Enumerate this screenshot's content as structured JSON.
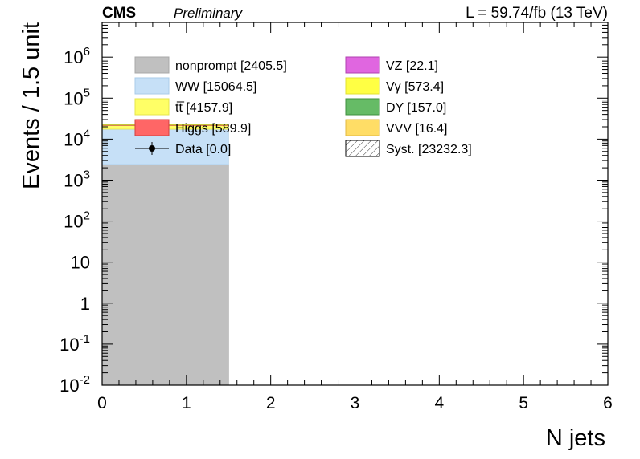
{
  "header": {
    "experiment": "CMS",
    "status": "Preliminary",
    "lumi": "L = 59.74/fb (13 TeV)"
  },
  "chart_data": {
    "type": "bar",
    "stacked": true,
    "xlabel": "N jets",
    "ylabel": "Events / 1.5 unit",
    "xlim": [
      0,
      6
    ],
    "ylim": [
      0.01,
      7000000
    ],
    "log_y": true,
    "x_ticks": [
      "0",
      "1",
      "2",
      "3",
      "4",
      "5",
      "6"
    ],
    "y_ticks": [
      {
        "base": "10",
        "exp": "-2",
        "value": 0.01
      },
      {
        "base": "10",
        "exp": "-1",
        "value": 0.1
      },
      {
        "base": "1",
        "exp": "",
        "value": 1
      },
      {
        "base": "10",
        "exp": "",
        "value": 10
      },
      {
        "base": "10",
        "exp": "2",
        "value": 100
      },
      {
        "base": "10",
        "exp": "3",
        "value": 1000
      },
      {
        "base": "10",
        "exp": "4",
        "value": 10000
      },
      {
        "base": "10",
        "exp": "5",
        "value": 100000
      },
      {
        "base": "10",
        "exp": "6",
        "value": 1000000
      }
    ],
    "bin_edges": [
      0,
      1.5,
      3,
      4.5,
      6
    ],
    "series": [
      {
        "name": "nonprompt",
        "total": "2405.5",
        "color": "#c0c0c0",
        "stroke": "#a8a8a8",
        "values": [
          2405.5,
          0,
          0,
          0
        ]
      },
      {
        "name": "WW",
        "total": "15064.5",
        "color": "#c6e0f7",
        "stroke": "#a9cbe8",
        "values": [
          15064.5,
          0,
          0,
          0
        ]
      },
      {
        "name": "tt̅",
        "total": "4157.9",
        "color": "#ffff66",
        "stroke": "#e6e64c",
        "values": [
          4157.9,
          0,
          0,
          0
        ]
      },
      {
        "name": "Higgs",
        "total": "589.9",
        "color": "#ff6666",
        "stroke": "#d04040",
        "values": [
          589.9,
          0,
          0,
          0
        ]
      },
      {
        "name": "VZ",
        "total": "22.1",
        "color": "#e066e0",
        "stroke": "#b040b0",
        "values": [
          22.1,
          0,
          0,
          0
        ]
      },
      {
        "name": "Vγ",
        "total": "573.4",
        "color": "#ffff44",
        "stroke": "#e0e030",
        "values": [
          573.4,
          0,
          0,
          0
        ]
      },
      {
        "name": "DY",
        "total": "157.0",
        "color": "#66bb66",
        "stroke": "#3f8f3f",
        "values": [
          157.0,
          0,
          0,
          0
        ]
      },
      {
        "name": "VVV",
        "total": "16.4",
        "color": "#ffdd66",
        "stroke": "#e0b840",
        "values": [
          16.4,
          0,
          0,
          0
        ]
      }
    ],
    "data_entry": {
      "name": "Data",
      "total": "0.0"
    },
    "syst_entry": {
      "name": "Syst.",
      "total": "23232.3"
    }
  }
}
